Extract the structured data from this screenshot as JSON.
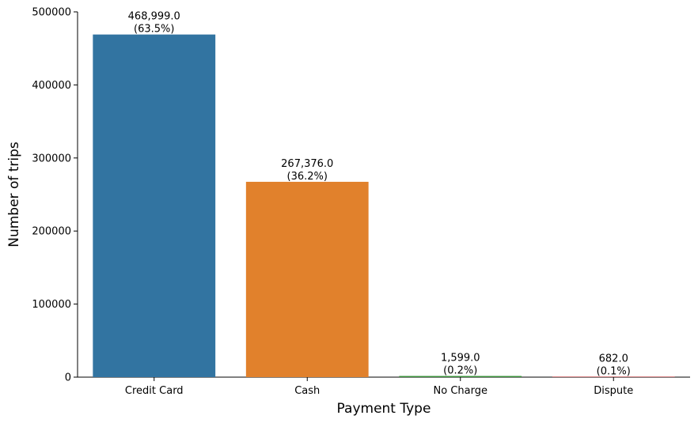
{
  "chart_data": {
    "type": "bar",
    "title": "",
    "xlabel": "Payment Type",
    "ylabel": "Number of trips",
    "ylim": [
      0,
      500000
    ],
    "yticks": [
      0,
      100000,
      200000,
      300000,
      400000,
      500000
    ],
    "ytick_labels": [
      "0",
      "100000",
      "200000",
      "300000",
      "400000",
      "500000"
    ],
    "categories": [
      "Credit Card",
      "Cash",
      "No Charge",
      "Dispute"
    ],
    "values": [
      468999,
      267376,
      1599,
      682
    ],
    "value_labels": [
      "468,999.0",
      "267,376.0",
      "1,599.0",
      "682.0"
    ],
    "percent_labels": [
      "(63.5%)",
      "(36.2%)",
      "(0.2%)",
      "(0.1%)"
    ],
    "colors": [
      "#3274a1",
      "#e1812c",
      "#3a923a",
      "#c03d3e"
    ],
    "grid": false,
    "legend": "none"
  }
}
